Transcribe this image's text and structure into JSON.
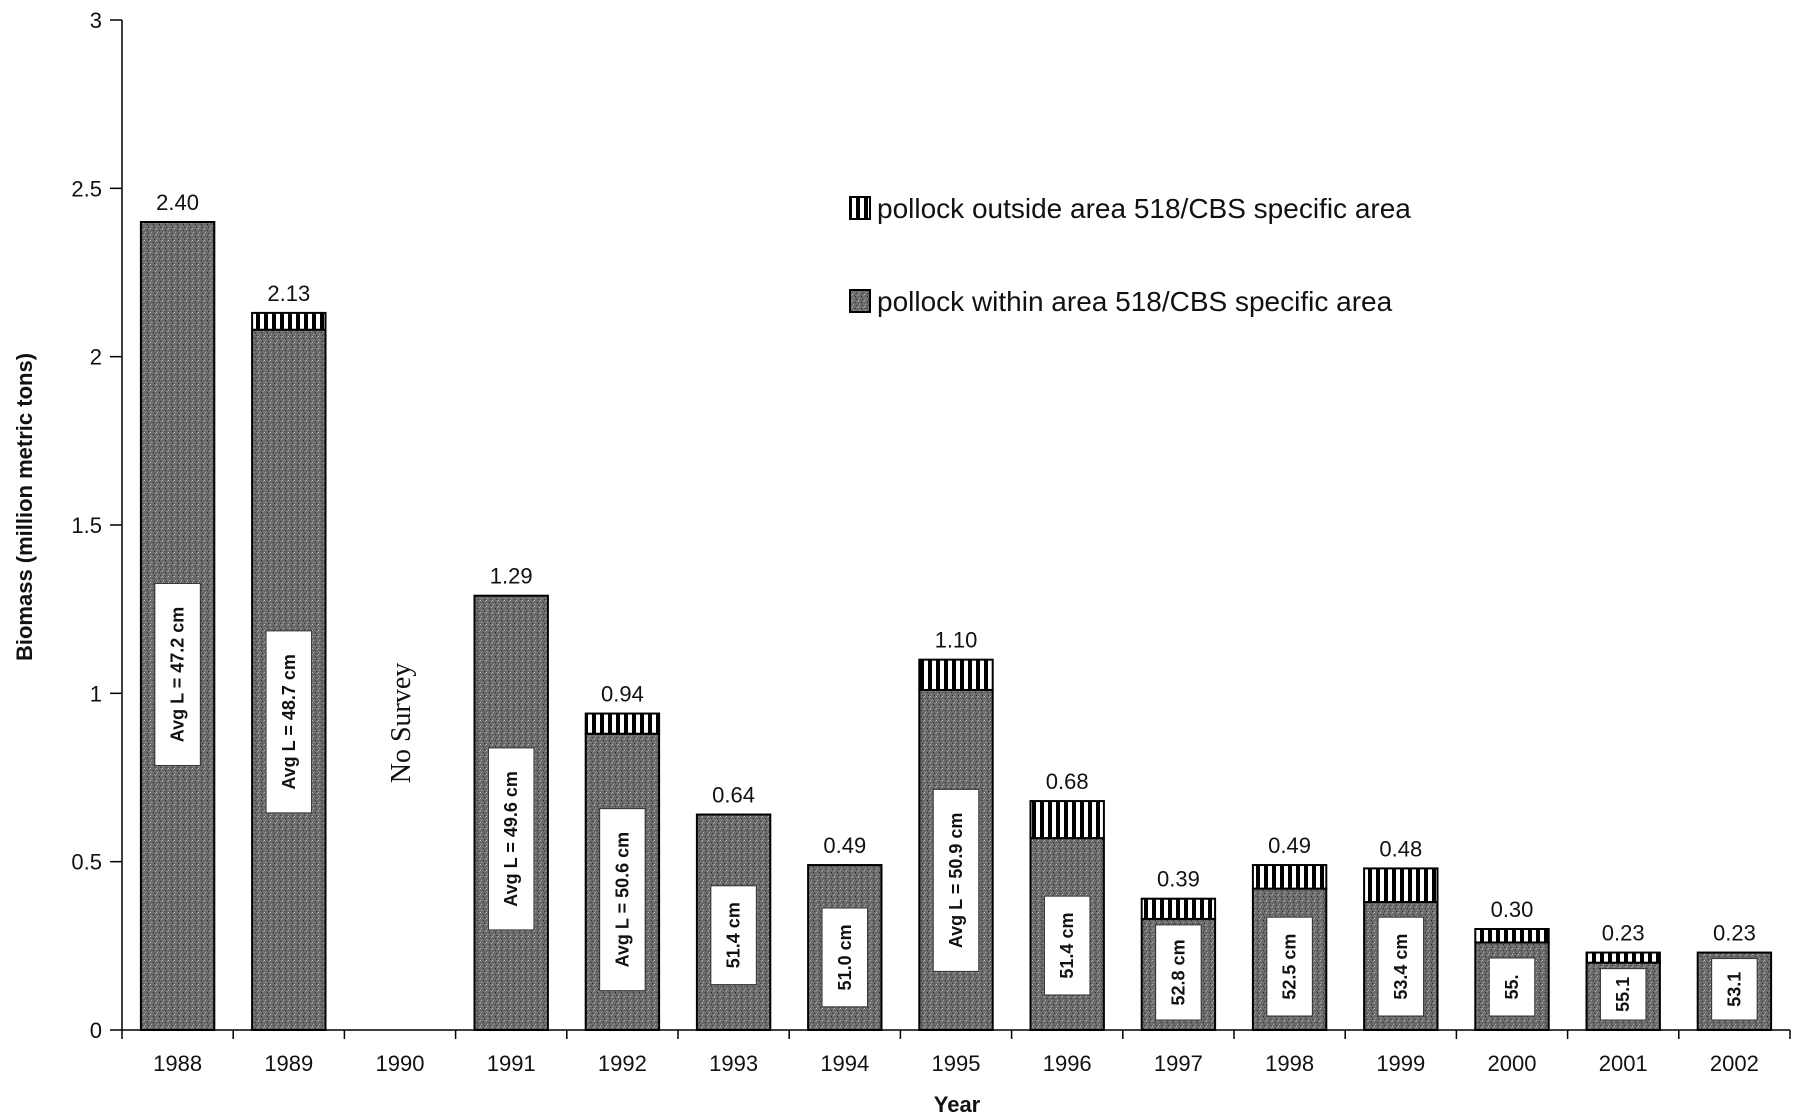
{
  "chart_data": {
    "type": "bar",
    "stacked": true,
    "title": "",
    "xlabel": "Year",
    "ylabel": "Biomass (million metric tons)",
    "ylim": [
      0,
      3
    ],
    "yticks": [
      "0",
      "0.5",
      "1",
      "1.5",
      "2",
      "2.5",
      "3"
    ],
    "grid": false,
    "legend_position": "top-right",
    "categories": [
      "1988",
      "1989",
      "1990",
      "1991",
      "1992",
      "1993",
      "1994",
      "1995",
      "1996",
      "1997",
      "1998",
      "1999",
      "2000",
      "2001",
      "2002"
    ],
    "series": [
      {
        "name": "pollock within area 518/CBS specific area",
        "pattern": "stipple",
        "color": "#5a5a5a",
        "values": [
          2.4,
          2.08,
          null,
          1.29,
          0.88,
          0.64,
          0.49,
          1.01,
          0.57,
          0.33,
          0.42,
          0.38,
          0.26,
          0.2,
          0.23
        ]
      },
      {
        "name": "pollock outside area 518/CBS specific area",
        "pattern": "vertical-stripes",
        "color": "#000000",
        "values": [
          0.0,
          0.05,
          null,
          0.0,
          0.06,
          0.0,
          0.0,
          0.09,
          0.11,
          0.06,
          0.07,
          0.1,
          0.04,
          0.03,
          0.0
        ]
      }
    ],
    "total_labels": [
      "2.40",
      "2.13",
      "",
      "1.29",
      "0.94",
      "0.64",
      "0.49",
      "1.10",
      "0.68",
      "0.39",
      "0.49",
      "0.48",
      "0.30",
      "0.23",
      "0.23"
    ],
    "length_labels": [
      "Avg L = 47.2 cm",
      "Avg L = 48.7 cm",
      "",
      "Avg L = 49.6 cm",
      "Avg L = 50.6 cm",
      "51.4 cm",
      "51.0 cm",
      "Avg L = 50.9 cm",
      "51.4 cm",
      "52.8 cm",
      "52.5 cm",
      "53.4 cm",
      "55.",
      "55.1",
      "53.1"
    ],
    "annotations": [
      {
        "category": "1990",
        "text": "No Survey"
      }
    ]
  }
}
